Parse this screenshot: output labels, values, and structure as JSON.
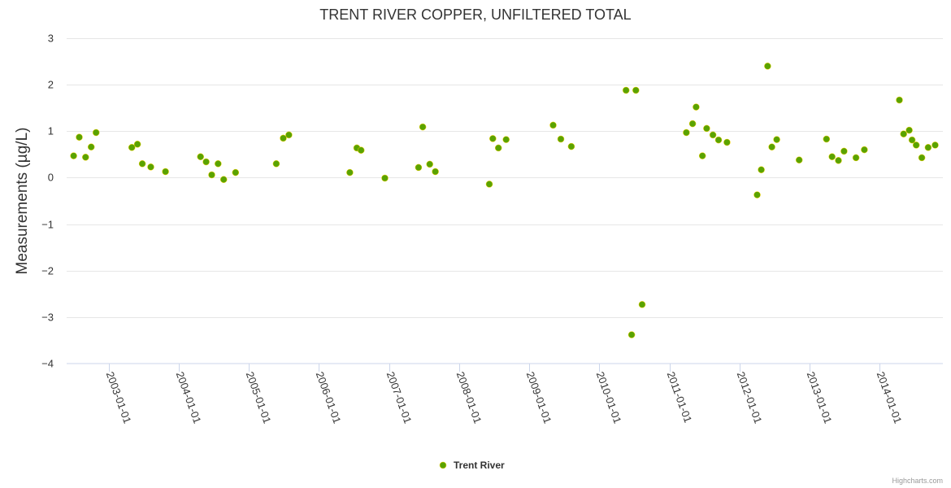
{
  "chart_data": {
    "type": "scatter",
    "title": "TRENT RIVER COPPER, UNFILTERED TOTAL",
    "ylabel": "Measurements (µg/L)",
    "xlabel": "",
    "ylim": [
      -4,
      3
    ],
    "yticks": [
      {
        "value": 3,
        "label": "3"
      },
      {
        "value": 2,
        "label": "2"
      },
      {
        "value": 1,
        "label": "1"
      },
      {
        "value": 0,
        "label": "0"
      },
      {
        "value": -1,
        "label": "−1"
      },
      {
        "value": -2,
        "label": "−2"
      },
      {
        "value": -3,
        "label": "−3"
      },
      {
        "value": -4,
        "label": "−4"
      }
    ],
    "xlim": [
      2002.4,
      2014.9
    ],
    "xticks": [
      {
        "value": 2003,
        "label": "2003-01-01"
      },
      {
        "value": 2004,
        "label": "2004-01-01"
      },
      {
        "value": 2005,
        "label": "2005-01-01"
      },
      {
        "value": 2006,
        "label": "2006-01-01"
      },
      {
        "value": 2007,
        "label": "2007-01-01"
      },
      {
        "value": 2008,
        "label": "2008-01-01"
      },
      {
        "value": 2009,
        "label": "2009-01-01"
      },
      {
        "value": 2010,
        "label": "2010-01-01"
      },
      {
        "value": 2011,
        "label": "2011-01-01"
      },
      {
        "value": 2012,
        "label": "2012-01-01"
      },
      {
        "value": 2013,
        "label": "2013-01-01"
      },
      {
        "value": 2014,
        "label": "2014-01-01"
      }
    ],
    "legend_position": "bottom-center",
    "series": [
      {
        "name": "Trent River",
        "color": "#5aa300",
        "points": [
          [
            2002.5,
            0.47
          ],
          [
            2002.58,
            0.87
          ],
          [
            2002.67,
            0.44
          ],
          [
            2002.75,
            0.66
          ],
          [
            2002.82,
            0.97
          ],
          [
            2003.33,
            0.65
          ],
          [
            2003.41,
            0.72
          ],
          [
            2003.48,
            0.3
          ],
          [
            2003.6,
            0.23
          ],
          [
            2003.81,
            0.13
          ],
          [
            2004.31,
            0.45
          ],
          [
            2004.39,
            0.34
          ],
          [
            2004.47,
            0.06
          ],
          [
            2004.56,
            0.3
          ],
          [
            2004.64,
            -0.04
          ],
          [
            2004.81,
            0.11
          ],
          [
            2005.39,
            0.3
          ],
          [
            2005.49,
            0.85
          ],
          [
            2005.57,
            0.92
          ],
          [
            2006.44,
            0.11
          ],
          [
            2006.54,
            0.64
          ],
          [
            2006.6,
            0.59
          ],
          [
            2006.94,
            -0.01
          ],
          [
            2007.42,
            0.22
          ],
          [
            2007.48,
            1.09
          ],
          [
            2007.58,
            0.29
          ],
          [
            2007.66,
            0.13
          ],
          [
            2008.43,
            -0.14
          ],
          [
            2008.48,
            0.84
          ],
          [
            2008.56,
            0.64
          ],
          [
            2008.67,
            0.82
          ],
          [
            2009.34,
            1.13
          ],
          [
            2009.45,
            0.83
          ],
          [
            2009.6,
            0.67
          ],
          [
            2010.38,
            1.88
          ],
          [
            2010.46,
            -3.38
          ],
          [
            2010.52,
            1.88
          ],
          [
            2010.61,
            -2.73
          ],
          [
            2011.24,
            0.97
          ],
          [
            2011.33,
            1.16
          ],
          [
            2011.38,
            1.52
          ],
          [
            2011.47,
            0.47
          ],
          [
            2011.53,
            1.06
          ],
          [
            2011.62,
            0.92
          ],
          [
            2011.7,
            0.81
          ],
          [
            2011.82,
            0.76
          ],
          [
            2012.25,
            -0.37
          ],
          [
            2012.31,
            0.17
          ],
          [
            2012.4,
            2.4
          ],
          [
            2012.46,
            0.66
          ],
          [
            2012.53,
            0.82
          ],
          [
            2012.85,
            0.38
          ],
          [
            2013.24,
            0.83
          ],
          [
            2013.32,
            0.45
          ],
          [
            2013.41,
            0.37
          ],
          [
            2013.49,
            0.57
          ],
          [
            2013.66,
            0.43
          ],
          [
            2013.78,
            0.6
          ],
          [
            2014.28,
            1.67
          ],
          [
            2014.34,
            0.94
          ],
          [
            2014.42,
            1.02
          ],
          [
            2014.46,
            0.81
          ],
          [
            2014.52,
            0.7
          ],
          [
            2014.6,
            0.43
          ],
          [
            2014.69,
            0.65
          ],
          [
            2014.79,
            0.7
          ]
        ]
      }
    ]
  },
  "credits": "Highcharts.com"
}
